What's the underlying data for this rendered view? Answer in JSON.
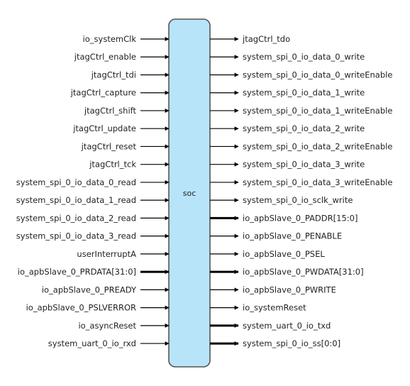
{
  "block": {
    "name": "soc",
    "fill": "#b8e4f9",
    "stroke": "#555555"
  },
  "inputs": [
    {
      "name": "io_systemClk",
      "bus": false
    },
    {
      "name": "jtagCtrl_enable",
      "bus": false
    },
    {
      "name": "jtagCtrl_tdi",
      "bus": false
    },
    {
      "name": "jtagCtrl_capture",
      "bus": false
    },
    {
      "name": "jtagCtrl_shift",
      "bus": false
    },
    {
      "name": "jtagCtrl_update",
      "bus": false
    },
    {
      "name": "jtagCtrl_reset",
      "bus": false
    },
    {
      "name": "jtagCtrl_tck",
      "bus": false
    },
    {
      "name": "system_spi_0_io_data_0_read",
      "bus": false
    },
    {
      "name": "system_spi_0_io_data_1_read",
      "bus": false
    },
    {
      "name": "system_spi_0_io_data_2_read",
      "bus": false
    },
    {
      "name": "system_spi_0_io_data_3_read",
      "bus": false
    },
    {
      "name": "userInterruptA",
      "bus": false
    },
    {
      "name": "io_apbSlave_0_PRDATA[31:0]",
      "bus": true
    },
    {
      "name": "io_apbSlave_0_PREADY",
      "bus": false
    },
    {
      "name": "io_apbSlave_0_PSLVERROR",
      "bus": false
    },
    {
      "name": "io_asyncReset",
      "bus": false
    },
    {
      "name": "system_uart_0_io_rxd",
      "bus": false
    }
  ],
  "outputs": [
    {
      "name": "jtagCtrl_tdo",
      "bus": false
    },
    {
      "name": "system_spi_0_io_data_0_write",
      "bus": false
    },
    {
      "name": "system_spi_0_io_data_0_writeEnable",
      "bus": false
    },
    {
      "name": "system_spi_0_io_data_1_write",
      "bus": false
    },
    {
      "name": "system_spi_0_io_data_1_writeEnable",
      "bus": false
    },
    {
      "name": "system_spi_0_io_data_2_write",
      "bus": false
    },
    {
      "name": "system_spi_0_io_data_2_writeEnable",
      "bus": false
    },
    {
      "name": "system_spi_0_io_data_3_write",
      "bus": false
    },
    {
      "name": "system_spi_0_io_data_3_writeEnable",
      "bus": false
    },
    {
      "name": "system_spi_0_io_sclk_write",
      "bus": false
    },
    {
      "name": "io_apbSlave_0_PADDR[15:0]",
      "bus": true
    },
    {
      "name": "io_apbSlave_0_PENABLE",
      "bus": false
    },
    {
      "name": "io_apbSlave_0_PSEL",
      "bus": false
    },
    {
      "name": "io_apbSlave_0_PWDATA[31:0]",
      "bus": true
    },
    {
      "name": "io_apbSlave_0_PWRITE",
      "bus": false
    },
    {
      "name": "io_systemReset",
      "bus": false
    },
    {
      "name": "system_uart_0_io_txd",
      "bus": true
    },
    {
      "name": "system_spi_0_io_ss[0:0]",
      "bus": true
    }
  ]
}
